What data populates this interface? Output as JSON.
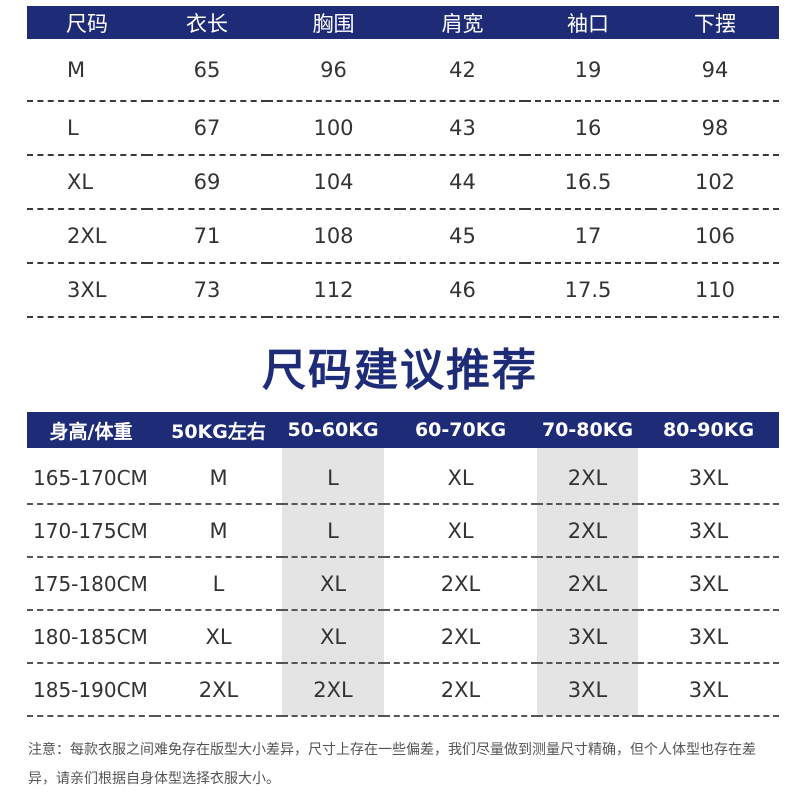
{
  "size_chart": {
    "headers": [
      "尺码",
      "衣长",
      "胸围",
      "肩宽",
      "袖口",
      "下摆"
    ],
    "rows": [
      [
        "M",
        "65",
        "96",
        "42",
        "19",
        "94"
      ],
      [
        "L",
        "67",
        "100",
        "43",
        "16",
        "98"
      ],
      [
        "XL",
        "69",
        "104",
        "44",
        "16.5",
        "102"
      ],
      [
        "2XL",
        "71",
        "108",
        "45",
        "17",
        "106"
      ],
      [
        "3XL",
        "73",
        "112",
        "46",
        "17.5",
        "110"
      ]
    ]
  },
  "recommendation": {
    "title": "尺码建议推荐",
    "headers": [
      "身高/体重",
      "50KG左右",
      "50-60KG",
      "60-70KG",
      "70-80KG",
      "80-90KG"
    ],
    "rows": [
      [
        "165-170CM",
        "M",
        "L",
        "XL",
        "2XL",
        "3XL"
      ],
      [
        "170-175CM",
        "M",
        "L",
        "XL",
        "2XL",
        "3XL"
      ],
      [
        "175-180CM",
        "L",
        "XL",
        "2XL",
        "2XL",
        "3XL"
      ],
      [
        "180-185CM",
        "XL",
        "XL",
        "2XL",
        "3XL",
        "3XL"
      ],
      [
        "185-190CM",
        "2XL",
        "2XL",
        "2XL",
        "3XL",
        "3XL"
      ]
    ],
    "shade_color": "#e4e4e4",
    "header_color": "#1e2c78"
  },
  "note": "注意：每款衣服之间难免存在版型大小差异，尺寸上存在一些偏差，我们尽量做到测量尺寸精确，但个人体型也存在差异，请亲们根据自身体型选择衣服大小。"
}
